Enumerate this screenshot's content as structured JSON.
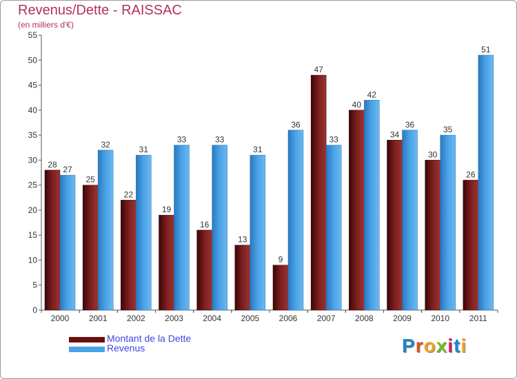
{
  "title": "Revenus/Dette - RAISSAC",
  "subtitle": "(en milliers d'€)",
  "colors": {
    "dette": "#7a1a1a",
    "revenus": "#4aa3e8",
    "title": "#b03060",
    "legend_text": "#4444dd"
  },
  "logo": {
    "text": "Proxiti",
    "letter_colors": [
      "#1e88c9",
      "#e05020",
      "#f0a020",
      "#7ab828",
      "#d81b60",
      "#1e88c9",
      "#f0a020"
    ]
  },
  "chart_data": {
    "type": "bar",
    "categories": [
      "2000",
      "2001",
      "2002",
      "2003",
      "2004",
      "2005",
      "2006",
      "2007",
      "2008",
      "2009",
      "2010",
      "2011"
    ],
    "series": [
      {
        "name": "Montant de la Dette",
        "values": [
          28,
          25,
          22,
          19,
          16,
          13,
          9,
          47,
          40,
          34,
          30,
          26
        ]
      },
      {
        "name": "Revenus",
        "values": [
          27,
          32,
          31,
          33,
          33,
          31,
          36,
          33,
          42,
          36,
          35,
          51
        ]
      }
    ],
    "ylim": [
      0,
      55
    ],
    "yticks": [
      0,
      5,
      10,
      15,
      20,
      25,
      30,
      35,
      40,
      45,
      50,
      55
    ],
    "grid": false,
    "legend_position": "bottom-left"
  }
}
